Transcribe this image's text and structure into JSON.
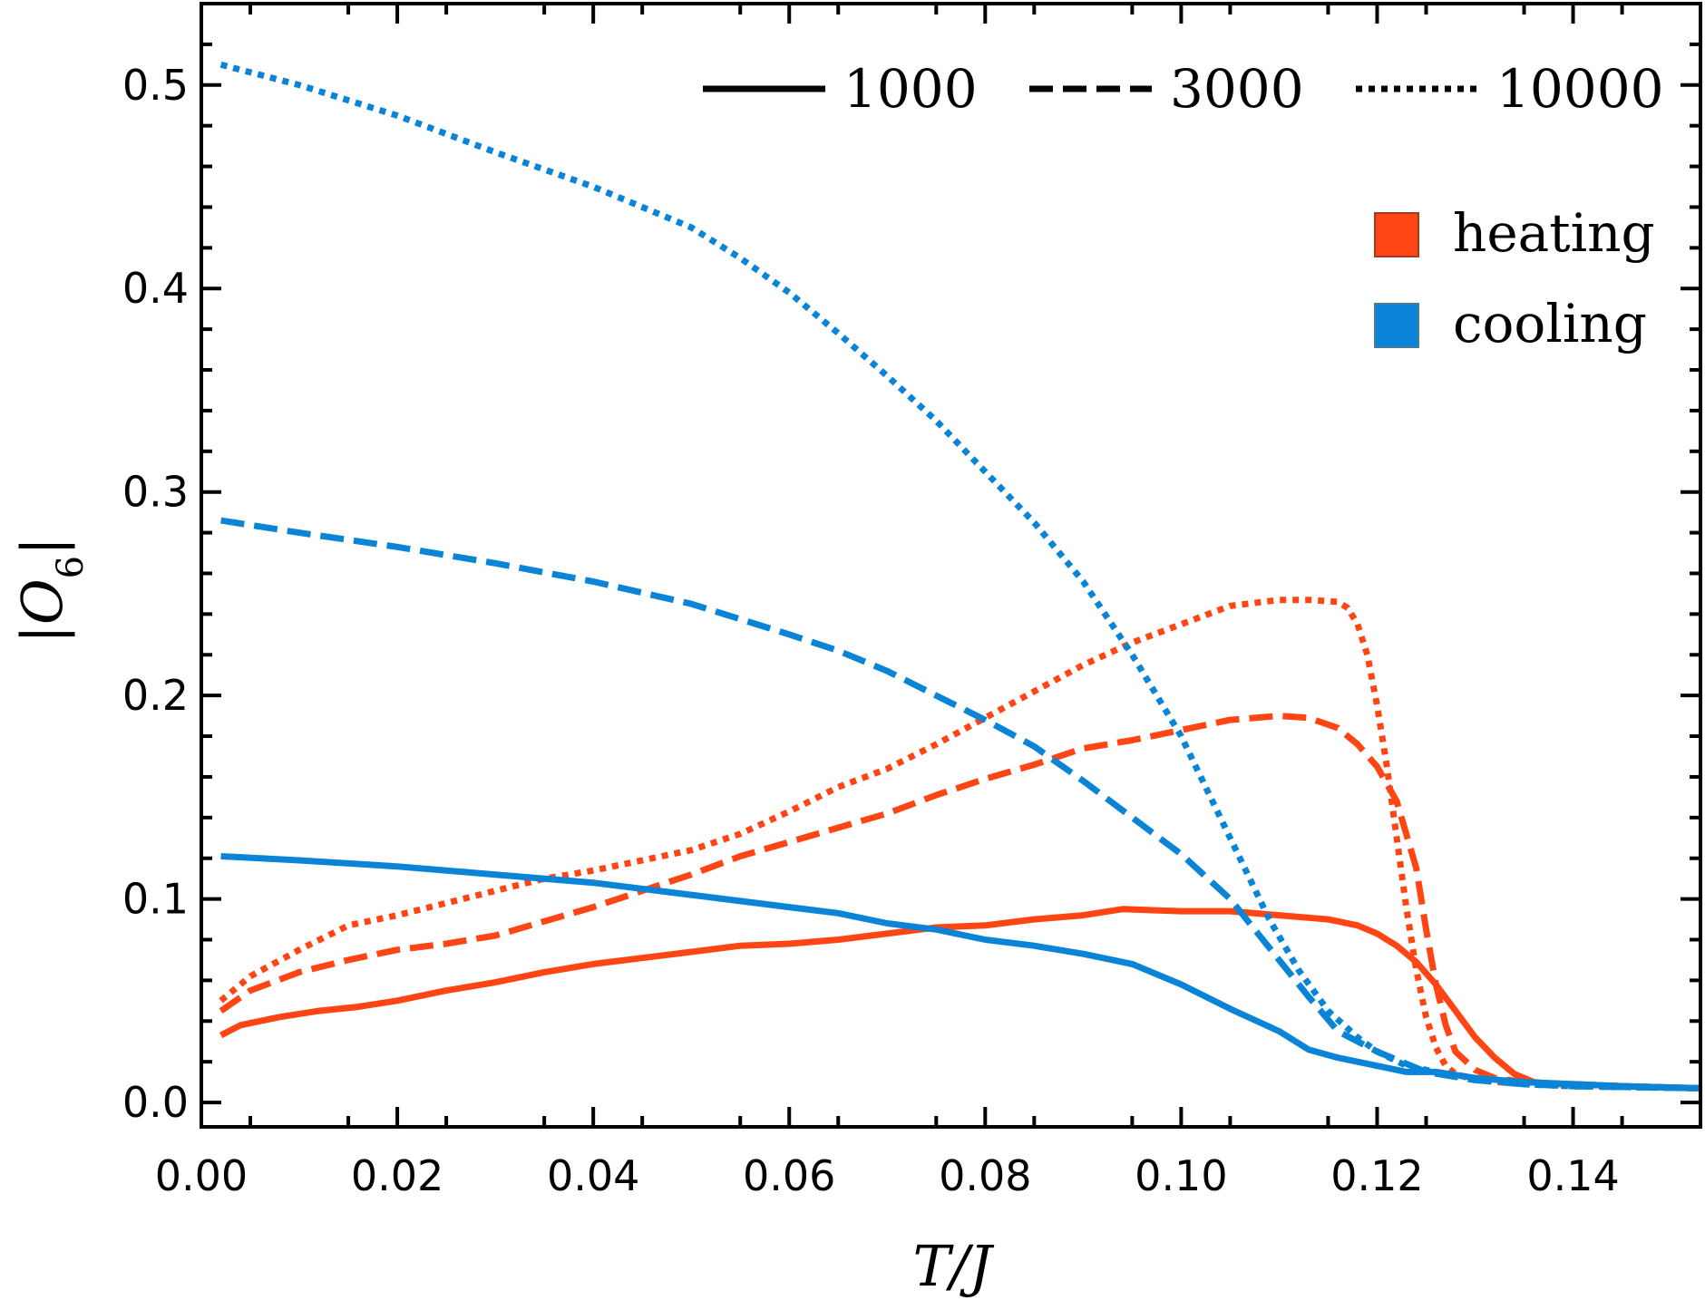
{
  "chart_data": {
    "type": "line",
    "xlabel": "T/J",
    "ylabel": "|O_6|",
    "xlim": [
      0,
      0.153
    ],
    "ylim": [
      -0.012,
      0.54
    ],
    "x_ticks": [
      "0.00",
      "0.02",
      "0.04",
      "0.06",
      "0.08",
      "0.10",
      "0.12",
      "0.14"
    ],
    "y_ticks": [
      "0.0",
      "0.1",
      "0.2",
      "0.3",
      "0.4",
      "0.5"
    ],
    "grid": false,
    "legend_style": {
      "placement": "top-right",
      "entries": [
        {
          "label": "1000",
          "dash": "solid"
        },
        {
          "label": "3000",
          "dash": "dashed"
        },
        {
          "label": "10000",
          "dash": "dotted"
        }
      ]
    },
    "legend_color": {
      "placement": "right",
      "entries": [
        {
          "label": "heating",
          "color": "#ff4514"
        },
        {
          "label": "cooling",
          "color": "#0a84d6"
        }
      ]
    },
    "series": [
      {
        "mode": "heating",
        "rate": "1000",
        "color": "#ff4514",
        "dash": "solid",
        "x": [
          0.002,
          0.004,
          0.008,
          0.012,
          0.016,
          0.02,
          0.025,
          0.03,
          0.035,
          0.04,
          0.045,
          0.05,
          0.055,
          0.06,
          0.065,
          0.07,
          0.075,
          0.08,
          0.085,
          0.09,
          0.094,
          0.1,
          0.105,
          0.11,
          0.115,
          0.118,
          0.12,
          0.122,
          0.124,
          0.126,
          0.128,
          0.13,
          0.132,
          0.134,
          0.136,
          0.138,
          0.14,
          0.145,
          0.153
        ],
        "y": [
          0.033,
          0.038,
          0.042,
          0.045,
          0.047,
          0.05,
          0.055,
          0.059,
          0.064,
          0.068,
          0.071,
          0.074,
          0.077,
          0.078,
          0.08,
          0.083,
          0.086,
          0.087,
          0.09,
          0.092,
          0.095,
          0.094,
          0.094,
          0.092,
          0.09,
          0.087,
          0.083,
          0.077,
          0.069,
          0.058,
          0.045,
          0.032,
          0.022,
          0.014,
          0.01,
          0.009,
          0.009,
          0.008,
          0.007
        ]
      },
      {
        "mode": "heating",
        "rate": "3000",
        "color": "#ff4514",
        "dash": "dashed",
        "x": [
          0.002,
          0.005,
          0.01,
          0.015,
          0.02,
          0.025,
          0.03,
          0.035,
          0.04,
          0.045,
          0.05,
          0.055,
          0.06,
          0.065,
          0.07,
          0.075,
          0.08,
          0.085,
          0.09,
          0.095,
          0.1,
          0.105,
          0.11,
          0.113,
          0.116,
          0.118,
          0.12,
          0.122,
          0.124,
          0.125,
          0.126,
          0.127,
          0.128,
          0.13,
          0.132,
          0.135,
          0.14,
          0.145,
          0.153
        ],
        "y": [
          0.045,
          0.055,
          0.064,
          0.07,
          0.075,
          0.078,
          0.082,
          0.089,
          0.096,
          0.104,
          0.112,
          0.121,
          0.128,
          0.135,
          0.142,
          0.151,
          0.159,
          0.166,
          0.174,
          0.178,
          0.183,
          0.188,
          0.19,
          0.189,
          0.184,
          0.176,
          0.165,
          0.148,
          0.115,
          0.085,
          0.058,
          0.038,
          0.025,
          0.016,
          0.012,
          0.01,
          0.009,
          0.008,
          0.007
        ]
      },
      {
        "mode": "heating",
        "rate": "10000",
        "color": "#ff4514",
        "dash": "dotted",
        "x": [
          0.002,
          0.005,
          0.01,
          0.015,
          0.02,
          0.025,
          0.03,
          0.035,
          0.04,
          0.045,
          0.05,
          0.055,
          0.06,
          0.065,
          0.07,
          0.075,
          0.08,
          0.085,
          0.09,
          0.095,
          0.1,
          0.105,
          0.11,
          0.113,
          0.116,
          0.117,
          0.118,
          0.119,
          0.12,
          0.121,
          0.122,
          0.123,
          0.124,
          0.125,
          0.126,
          0.127,
          0.128,
          0.13,
          0.135,
          0.14,
          0.153
        ],
        "y": [
          0.05,
          0.062,
          0.075,
          0.087,
          0.092,
          0.098,
          0.104,
          0.11,
          0.114,
          0.119,
          0.124,
          0.132,
          0.143,
          0.155,
          0.164,
          0.176,
          0.189,
          0.202,
          0.215,
          0.226,
          0.235,
          0.244,
          0.247,
          0.247,
          0.246,
          0.243,
          0.235,
          0.22,
          0.195,
          0.165,
          0.13,
          0.095,
          0.065,
          0.042,
          0.027,
          0.018,
          0.014,
          0.011,
          0.009,
          0.008,
          0.007
        ]
      },
      {
        "mode": "cooling",
        "rate": "1000",
        "color": "#0a84d6",
        "dash": "solid",
        "x": [
          0.002,
          0.01,
          0.02,
          0.03,
          0.04,
          0.05,
          0.06,
          0.065,
          0.07,
          0.075,
          0.08,
          0.085,
          0.09,
          0.095,
          0.1,
          0.105,
          0.11,
          0.113,
          0.116,
          0.12,
          0.123,
          0.126,
          0.13,
          0.135,
          0.14,
          0.145,
          0.153
        ],
        "y": [
          0.121,
          0.119,
          0.116,
          0.112,
          0.108,
          0.102,
          0.096,
          0.093,
          0.088,
          0.085,
          0.08,
          0.077,
          0.073,
          0.068,
          0.058,
          0.046,
          0.035,
          0.026,
          0.022,
          0.018,
          0.015,
          0.015,
          0.012,
          0.01,
          0.009,
          0.008,
          0.007
        ]
      },
      {
        "mode": "cooling",
        "rate": "3000",
        "color": "#0a84d6",
        "dash": "dashed",
        "x": [
          0.002,
          0.01,
          0.02,
          0.03,
          0.04,
          0.05,
          0.06,
          0.065,
          0.07,
          0.075,
          0.08,
          0.085,
          0.09,
          0.095,
          0.1,
          0.105,
          0.11,
          0.113,
          0.116,
          0.12,
          0.125,
          0.13,
          0.135,
          0.14,
          0.153
        ],
        "y": [
          0.286,
          0.28,
          0.273,
          0.265,
          0.256,
          0.245,
          0.23,
          0.222,
          0.212,
          0.2,
          0.188,
          0.175,
          0.158,
          0.14,
          0.122,
          0.1,
          0.07,
          0.052,
          0.035,
          0.025,
          0.015,
          0.011,
          0.009,
          0.008,
          0.007
        ]
      },
      {
        "mode": "cooling",
        "rate": "10000",
        "color": "#0a84d6",
        "dash": "dotted",
        "x": [
          0.002,
          0.01,
          0.02,
          0.03,
          0.04,
          0.05,
          0.055,
          0.06,
          0.065,
          0.07,
          0.075,
          0.08,
          0.085,
          0.09,
          0.095,
          0.1,
          0.103,
          0.106,
          0.109,
          0.112,
          0.115,
          0.118,
          0.12,
          0.123,
          0.126,
          0.13,
          0.135,
          0.14,
          0.153
        ],
        "y": [
          0.51,
          0.5,
          0.485,
          0.467,
          0.45,
          0.43,
          0.415,
          0.398,
          0.378,
          0.357,
          0.335,
          0.31,
          0.285,
          0.256,
          0.22,
          0.18,
          0.15,
          0.12,
          0.09,
          0.065,
          0.045,
          0.032,
          0.025,
          0.018,
          0.015,
          0.012,
          0.009,
          0.008,
          0.007
        ]
      }
    ]
  }
}
